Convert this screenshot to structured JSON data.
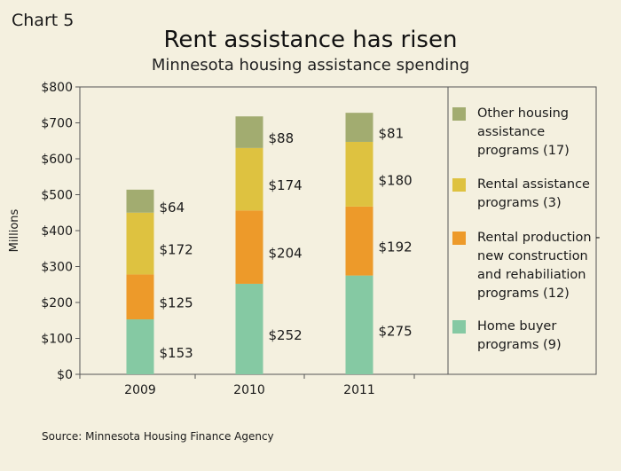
{
  "chart_label": "Chart 5",
  "chart_data": {
    "type": "bar",
    "stacked": true,
    "title": "Rent assistance has risen",
    "subtitle": "Minnesota housing assistance spending",
    "ylabel": "Millions",
    "xlabel": "",
    "categories": [
      "2009",
      "2010",
      "2011"
    ],
    "ylim": [
      0,
      800
    ],
    "yticks": [
      0,
      100,
      200,
      300,
      400,
      500,
      600,
      700,
      800
    ],
    "ytick_labels": [
      "$0",
      "$100",
      "$200",
      "$300",
      "$400",
      "$500",
      "$600",
      "$700",
      "$800"
    ],
    "grid": false,
    "legend_position": "right",
    "series": [
      {
        "name": "Home buyer programs (9)",
        "values": [
          153,
          252,
          275
        ],
        "labels": [
          "$153",
          "$252",
          "$275"
        ],
        "color": "#85c9a3"
      },
      {
        "name": "Rental production - new construction and rehabiliation programs (12)",
        "values": [
          125,
          204,
          192
        ],
        "labels": [
          "$125",
          "$204",
          "$192"
        ],
        "color": "#ed9a2a"
      },
      {
        "name": "Rental assistance programs (3)",
        "values": [
          172,
          174,
          180
        ],
        "labels": [
          "$172",
          "$174",
          "$180"
        ],
        "color": "#dec240"
      },
      {
        "name": "Other housing assistance programs (17)",
        "values": [
          64,
          88,
          81
        ],
        "labels": [
          "$64",
          "$88",
          "$81"
        ],
        "color": "#a2ac70"
      }
    ],
    "legend_order": [
      3,
      2,
      1,
      0
    ]
  },
  "source": "Source: Minnesota Housing Finance Agency",
  "colors": {
    "background": "#f4f0df",
    "axis": "#555555"
  }
}
